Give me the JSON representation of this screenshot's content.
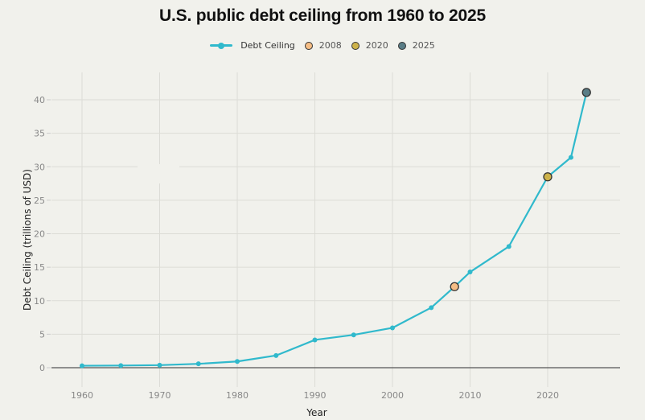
{
  "chart_data": {
    "type": "line",
    "title": "U.S. public debt ceiling from 1960 to 2025",
    "xlabel": "Year",
    "ylabel": "Debt Ceiling (trillions of USD)",
    "xlim": [
      1956,
      2029.3
    ],
    "ylim": [
      -1,
      41
    ],
    "grid": true,
    "legend_position": "top-center",
    "x_ticks": [
      1960,
      1970,
      1980,
      1990,
      2000,
      2010,
      2020
    ],
    "y_ticks": [
      0,
      5,
      10,
      15,
      20,
      25,
      30,
      35,
      40
    ],
    "series": [
      {
        "name": "Debt Ceiling",
        "color": "#30b9cc",
        "x": [
          1960,
          1965,
          1970,
          1975,
          1980,
          1985,
          1990,
          1995,
          2000,
          2005,
          2008,
          2010,
          2015,
          2020,
          2023,
          2025
        ],
        "y": [
          0.29,
          0.32,
          0.38,
          0.58,
          0.93,
          1.82,
          4.15,
          4.9,
          5.95,
          8.97,
          12.1,
          14.29,
          18.1,
          28.5,
          31.4,
          41.1
        ]
      }
    ],
    "highlights": [
      {
        "name": "2008",
        "x": 2008,
        "y": 12.1,
        "color": "#f5bd85"
      },
      {
        "name": "2020",
        "x": 2020,
        "y": 28.5,
        "color": "#cdb24a"
      },
      {
        "name": "2025",
        "x": 2025,
        "y": 41.1,
        "color": "#5a7d86"
      }
    ]
  }
}
